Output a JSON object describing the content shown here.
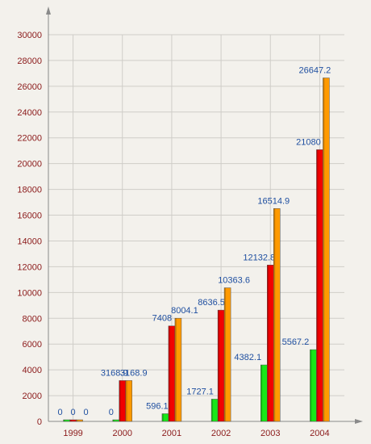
{
  "chart_data": {
    "type": "bar",
    "categories": [
      "1999",
      "2000",
      "2001",
      "2002",
      "2003",
      "2004"
    ],
    "series": [
      {
        "color": "#18e818",
        "values": [
          0,
          0,
          596.1,
          1727.1,
          4382.1,
          5567.2
        ]
      },
      {
        "color": "#f20000",
        "values": [
          0,
          3168.9,
          7408,
          8636.5,
          12132.8,
          21080
        ]
      },
      {
        "color": "#ff9a00",
        "values": [
          0,
          3168.9,
          8004.1,
          10363.6,
          16514.9,
          26647.2
        ]
      }
    ],
    "data_labels": [
      [
        "0",
        "0",
        "0"
      ],
      [
        "0",
        "3168.9",
        "3168.9"
      ],
      [
        "596.1",
        "7408",
        "8004.1"
      ],
      [
        "1727.1",
        "8636.5",
        "10363.6"
      ],
      [
        "4382.1",
        "12132.8",
        "16514.9"
      ],
      [
        "5567.2",
        "21080",
        "26647.2"
      ]
    ],
    "title": "",
    "xlabel": "",
    "ylabel": "",
    "ylim": [
      0,
      30000
    ],
    "yticks": [
      0,
      2000,
      4000,
      6000,
      8000,
      10000,
      12000,
      14000,
      16000,
      18000,
      20000,
      22000,
      24000,
      26000,
      28000,
      30000
    ],
    "grid": true,
    "legend": "none"
  }
}
